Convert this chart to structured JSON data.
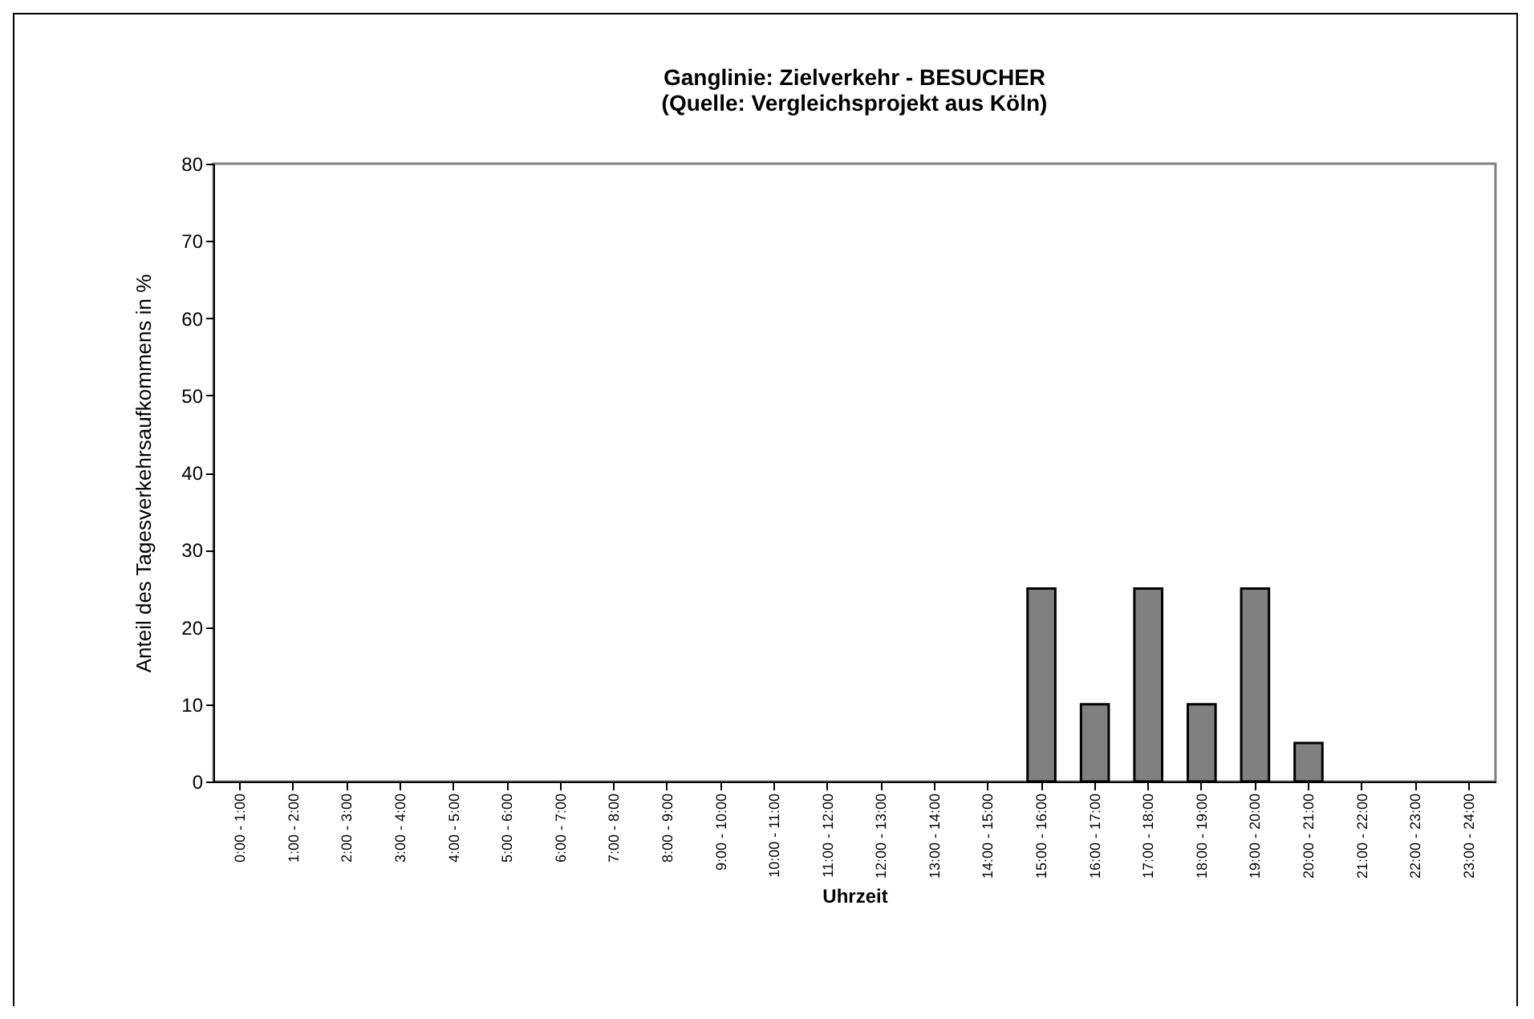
{
  "chart_data": {
    "type": "bar",
    "title": "Ganglinie: Zielverkehr - BESUCHER",
    "subtitle": "(Quelle: Vergleichsprojekt aus Köln)",
    "xlabel": "Uhrzeit",
    "ylabel": "Anteil des Tagesverkehrsaufkommens in %",
    "categories": [
      "0:00 - 1:00",
      "1:00 - 2:00",
      "2:00 - 3:00",
      "3:00 - 4:00",
      "4:00 - 5:00",
      "5:00 - 6:00",
      "6:00 - 7:00",
      "7:00 - 8:00",
      "8:00 - 9:00",
      "9:00 - 10:00",
      "10:00 - 11:00",
      "11:00 - 12:00",
      "12:00 - 13:00",
      "13:00 - 14:00",
      "14:00 - 15:00",
      "15:00 - 16:00",
      "16:00 - 17:00",
      "17:00 - 18:00",
      "18:00 - 19:00",
      "19:00 - 20:00",
      "20:00 - 21:00",
      "21:00 - 22:00",
      "22:00 - 23:00",
      "23:00 - 24:00"
    ],
    "values": [
      0,
      0,
      0,
      0,
      0,
      0,
      0,
      0,
      0,
      0,
      0,
      0,
      0,
      0,
      0,
      25,
      10,
      25,
      10,
      25,
      5,
      0,
      0,
      0
    ],
    "color": "#808080",
    "ylim": [
      0,
      80
    ],
    "yticks": [
      0,
      10,
      20,
      30,
      40,
      50,
      60,
      70,
      80
    ],
    "grid": false
  }
}
